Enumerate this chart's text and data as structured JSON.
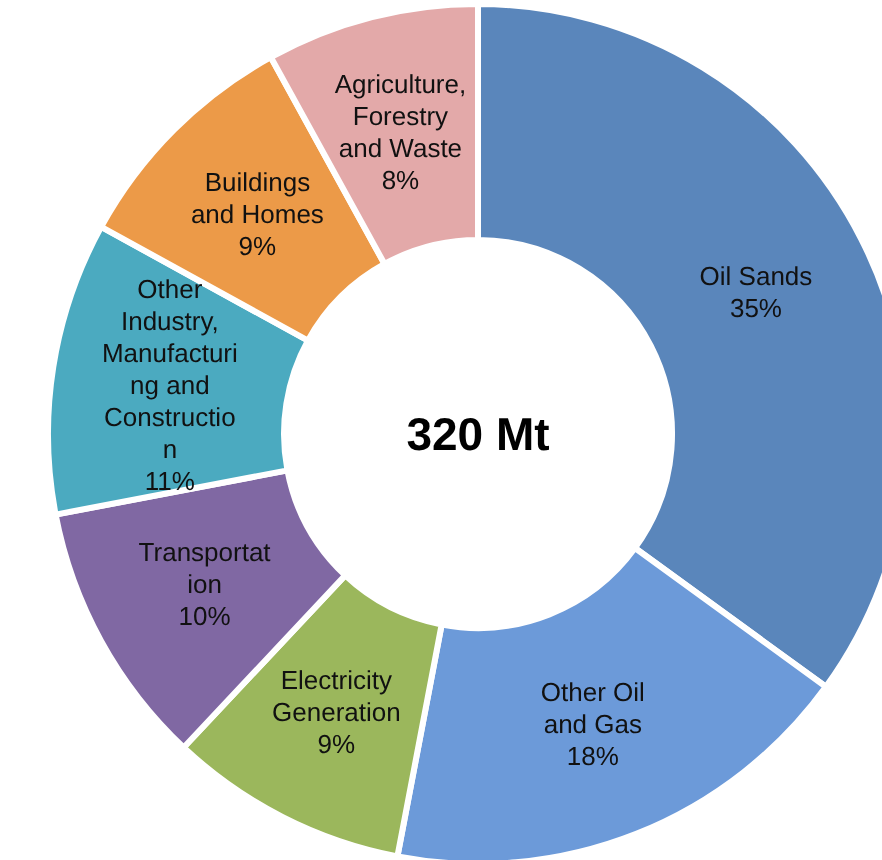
{
  "chart_data": {
    "type": "donut",
    "categories": [
      "Oil Sands",
      "Other Oil and Gas",
      "Electricity Generation",
      "Transportation",
      "Other Industry, Manufacturing and Construction",
      "Buildings and Homes",
      "Agriculture, Forestry and Waste"
    ],
    "values": [
      35,
      18,
      9,
      10,
      11,
      9,
      8
    ],
    "value_labels": [
      "35%",
      "18%",
      "9%",
      "10%",
      "11%",
      "9%",
      "8%"
    ],
    "colors": [
      "#5a86bb",
      "#6c9ad9",
      "#9bb75c",
      "#8068a3",
      "#4baac0",
      "#ec9a48",
      "#e3a9a9"
    ],
    "annotations": [
      "320 Mt"
    ]
  }
}
